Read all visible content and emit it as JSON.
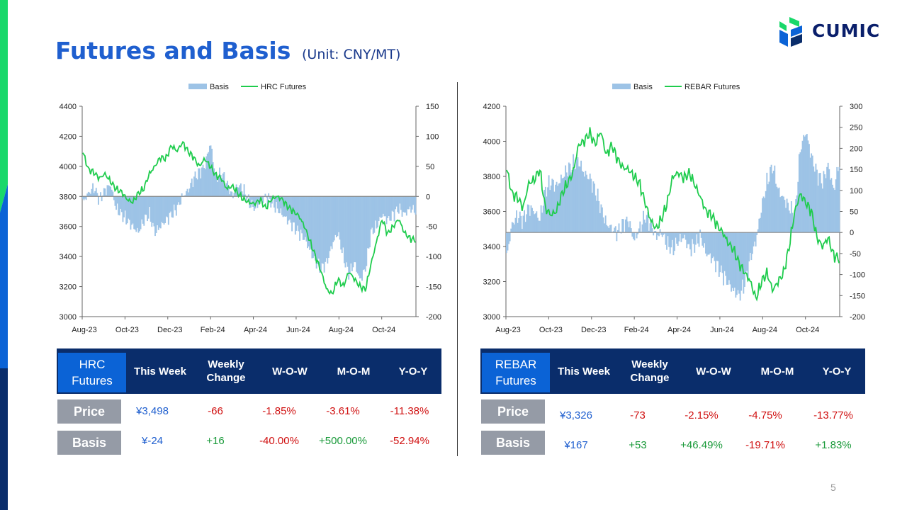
{
  "page": {
    "title": "Futures and Basis",
    "subtitle": "(Unit: CNY/MT)",
    "logo_text": "CUMIC",
    "page_number": "5",
    "colors": {
      "title": "#1f5fcf",
      "basis_bar": "#9dc3e6",
      "futures_line": "#1fcc4d",
      "table_header": "#0a2d6b",
      "table_first": "#0b63d6",
      "row_label": "#959ba6",
      "positive": "#1a9a3a",
      "negative": "#d01010",
      "value": "#1f5fcf"
    }
  },
  "chart_data": [
    {
      "type": "bar+line",
      "legend": [
        "Basis",
        "HRC Futures"
      ],
      "legend_position": "top-center",
      "x_ticks": [
        "Aug-23",
        "Oct-23",
        "Dec-23",
        "Feb-24",
        "Apr-24",
        "Jun-24",
        "Aug-24",
        "Oct-24"
      ],
      "y_left": {
        "min": 3000,
        "max": 4400,
        "ticks": [
          "4400",
          "4200",
          "4000",
          "3800",
          "3600",
          "3400",
          "3200",
          "3000"
        ]
      },
      "y_right": {
        "min": -200,
        "max": 150,
        "ticks": [
          "150",
          "100",
          "50",
          "0",
          "-50",
          "-100",
          "-150",
          "-200"
        ]
      },
      "futures_keypoints": [
        4100,
        3980,
        3960,
        3920,
        3950,
        3900,
        3850,
        3830,
        3780,
        3760,
        3820,
        3850,
        3950,
        4000,
        4060,
        4050,
        4140,
        4100,
        4160,
        4100,
        4060,
        4000,
        4050,
        4000,
        3940,
        3920,
        3850,
        3870,
        3820,
        3780,
        3760,
        3750,
        3780,
        3720,
        3780,
        3800,
        3780,
        3730,
        3700,
        3670,
        3600,
        3500,
        3400,
        3300,
        3180,
        3150,
        3250,
        3200,
        3300,
        3250,
        3200,
        3180,
        3350,
        3500,
        3650,
        3550,
        3600,
        3650,
        3560,
        3520,
        3510
      ],
      "basis_keypoints": [
        -10,
        5,
        15,
        -5,
        10,
        20,
        -20,
        -30,
        -40,
        -50,
        -60,
        -40,
        -30,
        -60,
        -50,
        -40,
        -30,
        -20,
        0,
        10,
        30,
        40,
        50,
        90,
        30,
        40,
        20,
        0,
        20,
        10,
        -10,
        -20,
        -10,
        0,
        -10,
        -20,
        -30,
        -40,
        -50,
        -60,
        -70,
        -90,
        -110,
        -120,
        -110,
        -80,
        -60,
        -100,
        -130,
        -110,
        -140,
        -120,
        -60,
        -50,
        -30,
        -40,
        -30,
        -20,
        -30,
        -20,
        -24
      ]
    },
    {
      "type": "bar+line",
      "legend": [
        "Basis",
        "REBAR Futures"
      ],
      "legend_position": "top-center",
      "x_ticks": [
        "Aug-23",
        "Oct-23",
        "Dec-23",
        "Feb-24",
        "Apr-24",
        "Jun-24",
        "Aug-24",
        "Oct-24"
      ],
      "y_left": {
        "min": 3000,
        "max": 4200,
        "ticks": [
          "4200",
          "4000",
          "3800",
          "3600",
          "3400",
          "3200",
          "3000"
        ]
      },
      "y_right": {
        "min": -200,
        "max": 300,
        "ticks": [
          "300",
          "250",
          "200",
          "150",
          "100",
          "50",
          "0",
          "-50",
          "-100",
          "-150",
          "-200"
        ]
      },
      "futures_keypoints": [
        3850,
        3700,
        3680,
        3620,
        3760,
        3780,
        3840,
        3620,
        3580,
        3600,
        3700,
        3760,
        3820,
        3980,
        4000,
        4050,
        3980,
        4060,
        3920,
        3980,
        3900,
        3850,
        3840,
        3800,
        3760,
        3650,
        3550,
        3500,
        3560,
        3650,
        3800,
        3820,
        3790,
        3820,
        3750,
        3680,
        3600,
        3580,
        3520,
        3480,
        3420,
        3380,
        3300,
        3250,
        3200,
        3100,
        3200,
        3250,
        3150,
        3200,
        3250,
        3400,
        3600,
        3700,
        3650,
        3600,
        3450,
        3400,
        3450,
        3350,
        3330
      ],
      "basis_keypoints": [
        -60,
        20,
        40,
        30,
        60,
        50,
        30,
        100,
        120,
        110,
        130,
        150,
        160,
        170,
        140,
        130,
        100,
        60,
        20,
        10,
        0,
        20,
        30,
        -20,
        10,
        40,
        20,
        -10,
        0,
        -30,
        -40,
        -20,
        -10,
        -40,
        -30,
        -10,
        -50,
        -60,
        -80,
        -100,
        -120,
        -140,
        -150,
        -120,
        -60,
        -20,
        60,
        120,
        160,
        100,
        80,
        60,
        40,
        200,
        240,
        180,
        140,
        120,
        160,
        100,
        167
      ]
    }
  ],
  "tables": [
    {
      "title": "HRC Futures",
      "headers": [
        "This Week",
        "Weekly Change",
        "W-O-W",
        "M-O-M",
        "Y-O-Y"
      ],
      "rows": [
        {
          "label": "Price",
          "values": [
            "¥3,498",
            "-66",
            "-1.85%",
            "-3.61%",
            "-11.38%"
          ]
        },
        {
          "label": "Basis",
          "values": [
            "¥-24",
            "+16",
            "-40.00%",
            "+500.00%",
            "-52.94%"
          ]
        }
      ]
    },
    {
      "title": "REBAR Futures",
      "headers": [
        "This Week",
        "Weekly Change",
        "W-O-W",
        "M-O-M",
        "Y-O-Y"
      ],
      "rows": [
        {
          "label": "Price",
          "values": [
            "¥3,326",
            "-73",
            "-2.15%",
            "-4.75%",
            "-13.77%"
          ]
        },
        {
          "label": "Basis",
          "values": [
            "¥167",
            "+53",
            "+46.49%",
            "-19.71%",
            "+1.83%"
          ]
        }
      ]
    }
  ]
}
